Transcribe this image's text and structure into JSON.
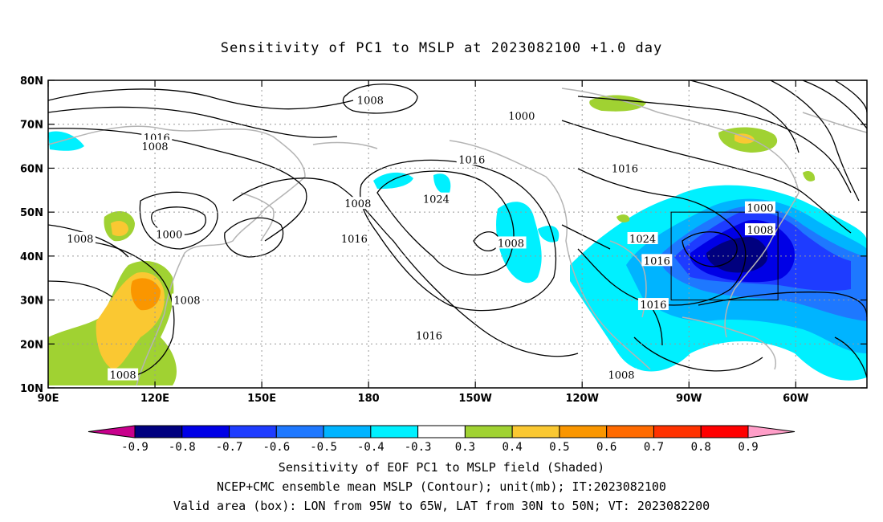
{
  "title": "Sensitivity of PC1 to MSLP at 2023082100 +1.0 day",
  "axes": {
    "lat_ticks": [
      "80N",
      "70N",
      "60N",
      "50N",
      "40N",
      "30N",
      "20N",
      "10N"
    ],
    "lon_ticks": [
      "90E",
      "120E",
      "150E",
      "180",
      "150W",
      "120W",
      "90W",
      "60W"
    ]
  },
  "contour_labels": [
    {
      "text": "1008",
      "lon": 180.5,
      "lat": 75.5
    },
    {
      "text": "1016",
      "lon": 120.5,
      "lat": 67
    },
    {
      "text": "1008",
      "lon": 120,
      "lat": 65
    },
    {
      "text": "1000",
      "lon": 223,
      "lat": 72
    },
    {
      "text": "1016",
      "lon": 209,
      "lat": 62
    },
    {
      "text": "1016",
      "lon": 252,
      "lat": 60
    },
    {
      "text": "1000",
      "lon": 290,
      "lat": 51
    },
    {
      "text": "1008",
      "lon": 290,
      "lat": 46
    },
    {
      "text": "1024",
      "lon": 199,
      "lat": 53
    },
    {
      "text": "1008",
      "lon": 177,
      "lat": 52
    },
    {
      "text": "1016",
      "lon": 176,
      "lat": 44
    },
    {
      "text": "1000",
      "lon": 124,
      "lat": 45
    },
    {
      "text": "1008",
      "lon": 99,
      "lat": 44
    },
    {
      "text": "1008",
      "lon": 129,
      "lat": 30
    },
    {
      "text": "1008",
      "lon": 111,
      "lat": 13
    },
    {
      "text": "1008",
      "lon": 220,
      "lat": 43
    },
    {
      "text": "1024",
      "lon": 257,
      "lat": 44
    },
    {
      "text": "1016",
      "lon": 261,
      "lat": 39
    },
    {
      "text": "1016",
      "lon": 260,
      "lat": 29
    },
    {
      "text": "1016",
      "lon": 197,
      "lat": 22
    },
    {
      "text": "1008",
      "lon": 251,
      "lat": 13
    }
  ],
  "valid_box": {
    "lon_min": 265,
    "lon_max": 295,
    "lat_min": 30,
    "lat_max": 50
  },
  "colorbar": {
    "labels": [
      "-0.9",
      "-0.8",
      "-0.7",
      "-0.6",
      "-0.5",
      "-0.4",
      "-0.3",
      "0.3",
      "0.4",
      "0.5",
      "0.6",
      "0.7",
      "0.8",
      "0.9"
    ],
    "colors": [
      "#00007f",
      "#0000e6",
      "#1e3cff",
      "#1e78ff",
      "#00b4ff",
      "#00f0ff",
      "#ffffff",
      "#a0d232",
      "#fac832",
      "#fa9600",
      "#ff6a00",
      "#ff3200",
      "#ff0000"
    ],
    "low_end_color": "#c8008c",
    "high_end_color": "#ff9ec8"
  },
  "captions": [
    "Sensitivity of EOF PC1 to MSLP field (Shaded)",
    "NCEP+CMC ensemble mean MSLP (Contour); unit(mb); IT:2023082100",
    "Valid area (box): LON from 95W to 65W, LAT from 30N to 50N; VT: 2023082200"
  ]
}
